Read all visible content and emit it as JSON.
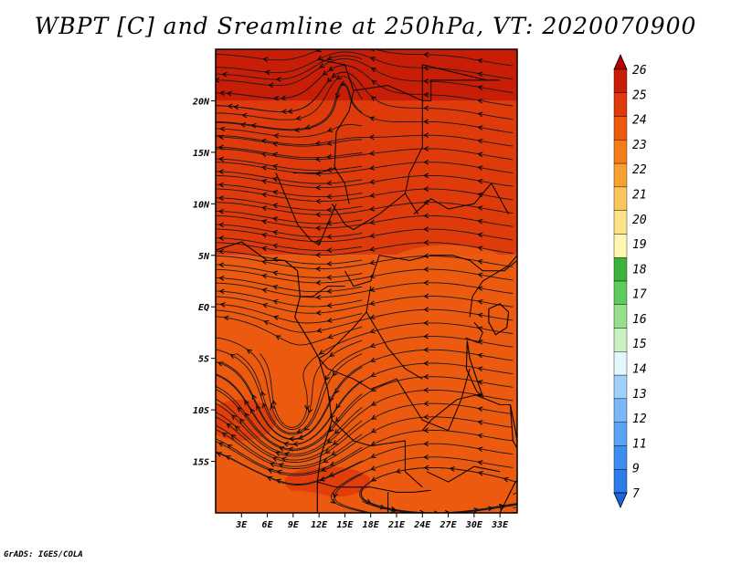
{
  "title": "WBPT [C] and Sreamline at 250hPa, VT: 2020070900",
  "credit": "GrADS: IGES/COLA",
  "chart_data": {
    "type": "heatmap",
    "title": "WBPT [C] and Sreamline at 250hPa, VT: 2020070900",
    "variable": "WBPT [C]",
    "overlay": "streamlines",
    "level": "250hPa",
    "valid_time": "2020070900",
    "x_axis": {
      "unit": "longitude",
      "range": [
        0,
        35
      ],
      "ticks": [
        3,
        6,
        9,
        12,
        15,
        18,
        21,
        24,
        27,
        30,
        33
      ],
      "tick_labels": [
        "3E",
        "6E",
        "9E",
        "12E",
        "15E",
        "18E",
        "21E",
        "24E",
        "27E",
        "30E",
        "33E"
      ]
    },
    "y_axis": {
      "unit": "latitude",
      "range": [
        -20,
        25
      ],
      "ticks": [
        20,
        15,
        10,
        5,
        0,
        -5,
        -10,
        -15
      ],
      "tick_labels": [
        "20N",
        "15N",
        "10N",
        "5N",
        "EQ",
        "5S",
        "10S",
        "15S"
      ]
    },
    "colorbar": {
      "levels": [
        7,
        9,
        11,
        12,
        13,
        14,
        15,
        16,
        17,
        18,
        19,
        20,
        21,
        22,
        23,
        24,
        25,
        26
      ],
      "labels": [
        "7",
        "9",
        "11",
        "12",
        "13",
        "14",
        "15",
        "16",
        "17",
        "18",
        "19",
        "20",
        "21",
        "22",
        "23",
        "24",
        "25",
        "26"
      ],
      "colors": [
        "#1a66d9",
        "#2b7be8",
        "#3d8ef0",
        "#5aa3f5",
        "#7bb8f8",
        "#a0d0fb",
        "#e6f6ff",
        "#c8f0c0",
        "#96e08a",
        "#5ccc5a",
        "#3cb43c",
        "#fff7b0",
        "#fde28a",
        "#fbc55e",
        "#f8a030",
        "#f57d18",
        "#ec5a10",
        "#df3a0c",
        "#c81e08",
        "#b40000"
      ],
      "extend": "both"
    },
    "field_bands": [
      {
        "lat_range": [
          20,
          25
        ],
        "value": 25
      },
      {
        "lat_range": [
          5,
          20
        ],
        "value": 24
      },
      {
        "lat_range": [
          -20,
          5
        ],
        "value": 23
      }
    ]
  }
}
